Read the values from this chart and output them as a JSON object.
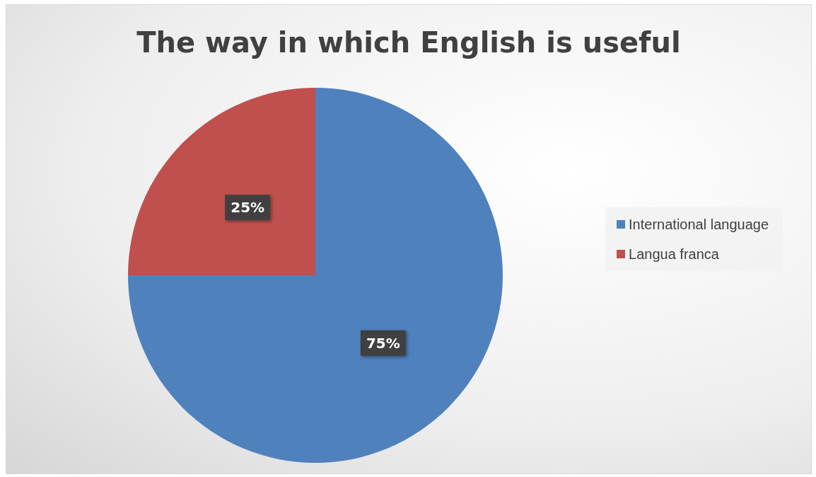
{
  "chart_data": {
    "type": "pie",
    "title": "The way in which English is useful",
    "categories": [
      "International language",
      "Langua franca"
    ],
    "values": [
      75,
      25
    ],
    "colors": [
      "#4f81bd",
      "#c0504d"
    ],
    "value_labels": [
      "75%",
      "25%"
    ],
    "legend": "right"
  }
}
